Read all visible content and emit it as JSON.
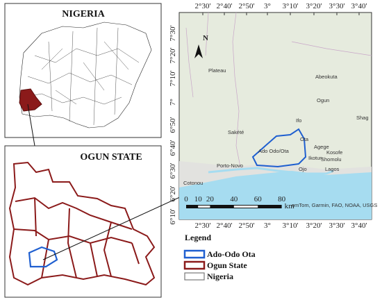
{
  "insets": [
    {
      "title": "NIGERIA"
    },
    {
      "title": "OGUN STATE"
    }
  ],
  "map": {
    "lon_labels": [
      "2°30'",
      "2°40'",
      "2°50'",
      "3°",
      "3°10'",
      "3°20'",
      "3°30'",
      "3°40'"
    ],
    "lat_labels": [
      "7°30'",
      "7°20'",
      "7°10'",
      "7°",
      "6°50'",
      "6°40'",
      "6°30'",
      "6°20'",
      "6°10'"
    ],
    "north": "N",
    "places": [
      "Plateau",
      "Abeokuta",
      "Ogun",
      "Shag",
      "Ifo",
      "Sakété",
      "Ota",
      "Ado Odo/Ota",
      "Agege",
      "Kosofe",
      "Ikotun",
      "Shomolu",
      "Porto-Novo",
      "Ojo",
      "Lagos",
      "Cotonou"
    ],
    "scale": {
      "ticks": [
        0,
        10,
        20,
        40,
        60,
        80
      ],
      "unit": "km"
    },
    "attribution": "omTom, Garmin, FAO, NOAA, USGS"
  },
  "legend": {
    "title": "Legend",
    "items": [
      {
        "label": "Ado-Odo Ota",
        "color": "#1f5fd0"
      },
      {
        "label": "Ogun State",
        "color": "#8b1a1a"
      },
      {
        "label": "Nigeria",
        "color": "#777777"
      }
    ]
  }
}
